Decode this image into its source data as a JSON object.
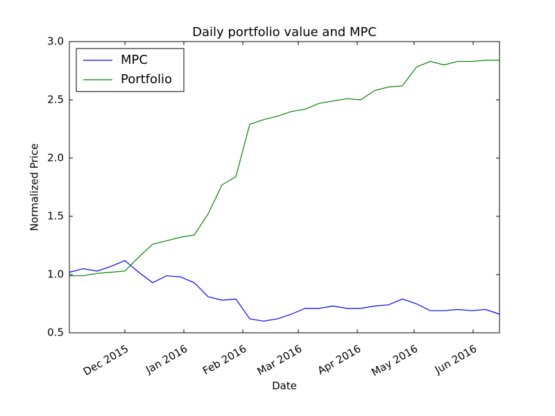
{
  "chart_data": {
    "type": "line",
    "title": "Daily portfolio value and MPC",
    "x_label": "Date",
    "y_label": "Normalized Price",
    "xlim": [
      0,
      31
    ],
    "xticks": [
      {
        "value": 4,
        "label": "Dec 2015"
      },
      {
        "value": 8.25,
        "label": "Jan 2016"
      },
      {
        "value": 12.5,
        "label": "Feb 2016"
      },
      {
        "value": 16.5,
        "label": "Mar 2016"
      },
      {
        "value": 20.75,
        "label": "Apr 2016"
      },
      {
        "value": 24.85,
        "label": "May 2016"
      },
      {
        "value": 29.1,
        "label": "Jun 2016"
      }
    ],
    "ylim": [
      0.5,
      3
    ],
    "yticks": [
      0.5,
      {
        "value": 1,
        "label": "1.0"
      },
      1.5,
      {
        "value": 2,
        "label": "2.0"
      },
      2.5,
      {
        "value": 3,
        "label": "3.0"
      }
    ],
    "legend": "upper left",
    "series": [
      {
        "name": "MPC",
        "color": "#0000ff",
        "values": [
          1.02,
          1.05,
          1.03,
          1.07,
          1.12,
          1.02,
          0.93,
          0.99,
          0.98,
          0.93,
          0.81,
          0.78,
          0.79,
          0.62,
          0.6,
          0.62,
          0.66,
          0.71,
          0.71,
          0.73,
          0.71,
          0.71,
          0.73,
          0.74,
          0.79,
          0.75,
          0.69,
          0.69,
          0.7,
          0.69,
          0.7,
          0.66
        ]
      },
      {
        "name": "Portfolio",
        "color": "#008000",
        "values": [
          0.99,
          0.99,
          1.01,
          1.02,
          1.03,
          1.15,
          1.26,
          1.29,
          1.32,
          1.34,
          1.52,
          1.77,
          1.84,
          2.29,
          2.33,
          2.36,
          2.4,
          2.42,
          2.47,
          2.49,
          2.51,
          2.5,
          2.58,
          2.61,
          2.62,
          2.78,
          2.83,
          2.8,
          2.83,
          2.83,
          2.84,
          2.84
        ]
      }
    ]
  }
}
